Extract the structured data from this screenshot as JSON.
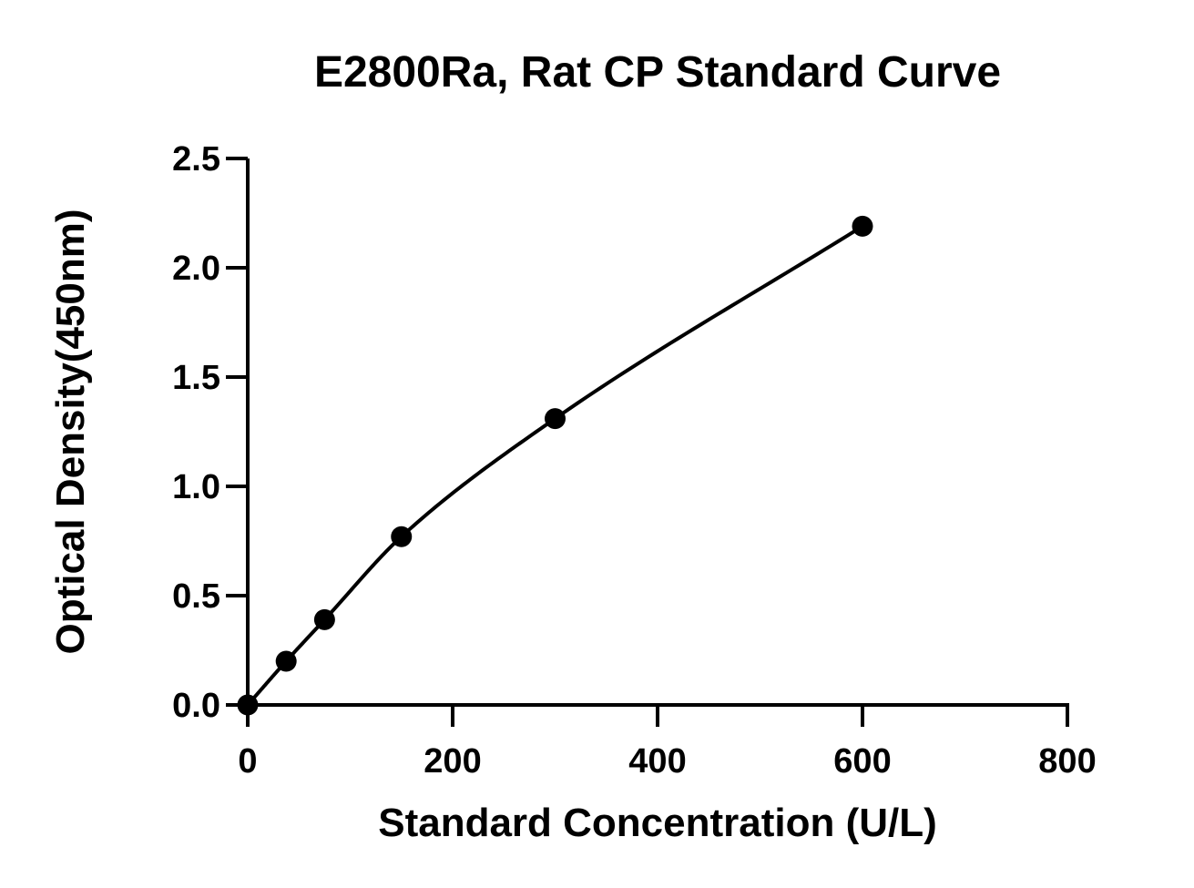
{
  "chart_data": {
    "type": "scatter",
    "title": "E2800Ra, Rat CP Standard Curve",
    "xlabel": "Standard Concentration (U/L)",
    "ylabel": "Optical Density(450nm)",
    "xlim": [
      0,
      800
    ],
    "ylim": [
      0,
      2.5
    ],
    "xticks": [
      "0",
      "200",
      "400",
      "600",
      "800"
    ],
    "yticks": [
      "0.0",
      "0.5",
      "1.0",
      "1.5",
      "2.0",
      "2.5"
    ],
    "grid": false,
    "legend": "none",
    "fit_curve": true,
    "series": [
      {
        "x": [
          0,
          37.5,
          75,
          150,
          300,
          600
        ],
        "y": [
          0.0,
          0.2,
          0.39,
          0.77,
          1.31,
          2.19
        ]
      }
    ],
    "colors": {
      "marker": "#000000",
      "line": "#000000",
      "axis": "#000000"
    }
  }
}
